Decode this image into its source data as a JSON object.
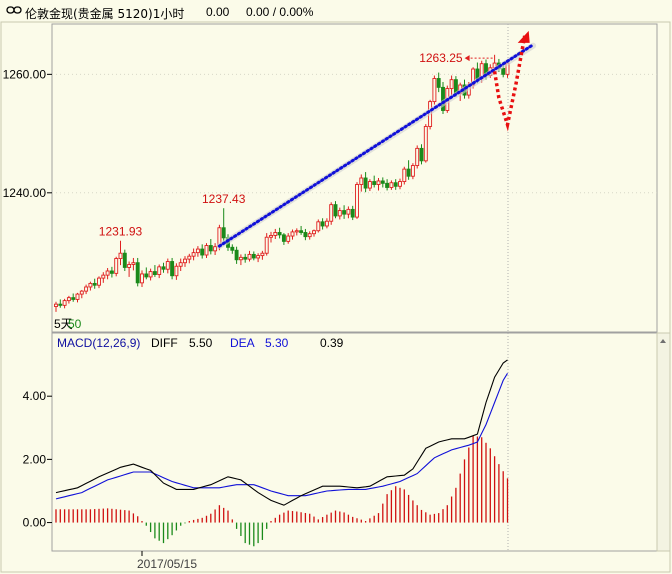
{
  "header": {
    "icon": "link-icon",
    "title": "伦敦金现(贵金属 5120)1小时",
    "change": "0.00",
    "change_pct": "0.00 / 0.00%"
  },
  "chart_data": [
    {
      "type": "candlestick",
      "title": "",
      "ylim": [
        1216.5,
        1268.5
      ],
      "yticks": [
        1240,
        1260
      ],
      "ytick_labels": [
        "1240.00",
        "1260.00"
      ],
      "ma_label": "5天",
      "ma_value_partial": "50",
      "annotations": [
        {
          "text": "1231.93",
          "index": 15,
          "value": 1231.93
        },
        {
          "text": "1237.43",
          "index": 39,
          "value": 1237.43
        },
        {
          "text": "1263.25",
          "index": 102,
          "value": 1263.25
        }
      ],
      "candles": [
        [
          1220.8,
          1221.6,
          1219.9,
          1221.2
        ],
        [
          1221.2,
          1222.0,
          1220.6,
          1221.0
        ],
        [
          1221.0,
          1222.1,
          1220.5,
          1221.8
        ],
        [
          1221.8,
          1222.6,
          1221.3,
          1222.3
        ],
        [
          1222.3,
          1223.0,
          1221.6,
          1222.0
        ],
        [
          1222.0,
          1223.1,
          1221.5,
          1222.9
        ],
        [
          1222.9,
          1223.6,
          1222.2,
          1223.4
        ],
        [
          1223.4,
          1224.5,
          1222.9,
          1224.1
        ],
        [
          1224.1,
          1225.0,
          1223.5,
          1224.7
        ],
        [
          1224.7,
          1225.5,
          1223.8,
          1224.4
        ],
        [
          1224.4,
          1225.9,
          1223.9,
          1225.6
        ],
        [
          1225.6,
          1226.6,
          1224.8,
          1226.1
        ],
        [
          1226.1,
          1227.3,
          1225.4,
          1226.8
        ],
        [
          1226.8,
          1227.5,
          1225.7,
          1226.4
        ],
        [
          1226.4,
          1229.2,
          1225.9,
          1228.9
        ],
        [
          1228.9,
          1231.9,
          1227.8,
          1229.8
        ],
        [
          1229.8,
          1230.4,
          1226.8,
          1227.4
        ],
        [
          1227.4,
          1228.4,
          1225.8,
          1227.9
        ],
        [
          1227.9,
          1229.0,
          1226.9,
          1228.2
        ],
        [
          1228.2,
          1229.0,
          1224.2,
          1224.8
        ],
        [
          1224.8,
          1226.9,
          1224.1,
          1226.3
        ],
        [
          1226.3,
          1227.4,
          1225.4,
          1225.8
        ],
        [
          1225.8,
          1227.2,
          1225.2,
          1226.7
        ],
        [
          1226.7,
          1227.8,
          1225.8,
          1226.2
        ],
        [
          1226.2,
          1227.9,
          1225.6,
          1227.5
        ],
        [
          1227.5,
          1228.2,
          1226.5,
          1227.1
        ],
        [
          1227.1,
          1228.9,
          1226.4,
          1228.4
        ],
        [
          1228.4,
          1229.0,
          1225.4,
          1226.0
        ],
        [
          1226.0,
          1228.1,
          1225.3,
          1227.6
        ],
        [
          1227.6,
          1228.9,
          1226.8,
          1228.2
        ],
        [
          1228.2,
          1229.3,
          1227.5,
          1228.8
        ],
        [
          1228.8,
          1229.7,
          1228.1,
          1229.3
        ],
        [
          1229.3,
          1230.6,
          1228.6,
          1229.9
        ],
        [
          1229.9,
          1231.0,
          1229.2,
          1230.5
        ],
        [
          1230.5,
          1231.3,
          1228.9,
          1229.5
        ],
        [
          1229.5,
          1231.5,
          1229.0,
          1231.1
        ],
        [
          1231.1,
          1232.2,
          1229.6,
          1230.2
        ],
        [
          1230.2,
          1231.5,
          1229.5,
          1230.9
        ],
        [
          1230.9,
          1234.6,
          1230.3,
          1234.1
        ],
        [
          1234.1,
          1237.4,
          1231.8,
          1232.4
        ],
        [
          1232.4,
          1233.0,
          1230.2,
          1230.8
        ],
        [
          1230.8,
          1231.3,
          1229.7,
          1230.3
        ],
        [
          1230.3,
          1230.9,
          1228.0,
          1228.7
        ],
        [
          1228.7,
          1229.6,
          1227.8,
          1229.1
        ],
        [
          1229.1,
          1229.7,
          1228.2,
          1228.8
        ],
        [
          1228.8,
          1230.2,
          1228.4,
          1229.6
        ],
        [
          1229.6,
          1230.1,
          1228.6,
          1229.0
        ],
        [
          1229.0,
          1229.8,
          1228.3,
          1229.4
        ],
        [
          1229.4,
          1230.2,
          1228.7,
          1229.8
        ],
        [
          1229.8,
          1233.2,
          1229.4,
          1232.5
        ],
        [
          1232.5,
          1233.4,
          1231.6,
          1232.8
        ],
        [
          1232.8,
          1233.9,
          1232.2,
          1233.3
        ],
        [
          1233.3,
          1234.1,
          1232.3,
          1232.9
        ],
        [
          1232.9,
          1233.2,
          1231.2,
          1231.8
        ],
        [
          1231.8,
          1233.2,
          1231.4,
          1232.7
        ],
        [
          1232.7,
          1233.8,
          1232.1,
          1233.4
        ],
        [
          1233.4,
          1234.0,
          1232.8,
          1233.6
        ],
        [
          1233.6,
          1234.4,
          1232.9,
          1233.3
        ],
        [
          1233.3,
          1233.9,
          1232.0,
          1232.6
        ],
        [
          1232.6,
          1233.5,
          1232.1,
          1233.1
        ],
        [
          1233.1,
          1233.8,
          1232.6,
          1233.6
        ],
        [
          1233.6,
          1235.5,
          1233.3,
          1235.1
        ],
        [
          1235.1,
          1235.7,
          1233.8,
          1234.4
        ],
        [
          1234.4,
          1235.7,
          1234.0,
          1235.2
        ],
        [
          1235.2,
          1238.4,
          1234.6,
          1238.0
        ],
        [
          1238.0,
          1238.6,
          1235.7,
          1236.1
        ],
        [
          1236.1,
          1237.5,
          1235.5,
          1237.0
        ],
        [
          1237.0,
          1237.9,
          1235.6,
          1236.4
        ],
        [
          1236.4,
          1237.7,
          1235.7,
          1237.2
        ],
        [
          1237.2,
          1237.8,
          1235.4,
          1235.9
        ],
        [
          1235.9,
          1241.8,
          1235.6,
          1241.4
        ],
        [
          1241.4,
          1243.1,
          1240.2,
          1242.5
        ],
        [
          1242.5,
          1243.5,
          1240.1,
          1240.8
        ],
        [
          1240.8,
          1242.3,
          1240.3,
          1241.9
        ],
        [
          1241.9,
          1242.9,
          1240.9,
          1241.4
        ],
        [
          1241.4,
          1242.5,
          1240.4,
          1242.0
        ],
        [
          1242.0,
          1242.6,
          1240.9,
          1241.6
        ],
        [
          1241.6,
          1242.3,
          1240.4,
          1240.9
        ],
        [
          1240.9,
          1242.1,
          1240.5,
          1241.7
        ],
        [
          1241.7,
          1242.3,
          1240.5,
          1241.1
        ],
        [
          1241.1,
          1242.4,
          1240.6,
          1241.9
        ],
        [
          1241.9,
          1244.4,
          1241.4,
          1244.0
        ],
        [
          1244.0,
          1245.5,
          1242.2,
          1242.8
        ],
        [
          1242.8,
          1245.0,
          1242.3,
          1244.6
        ],
        [
          1244.6,
          1248.0,
          1244.1,
          1247.5
        ],
        [
          1247.5,
          1248.2,
          1244.8,
          1245.4
        ],
        [
          1245.4,
          1251.6,
          1245.1,
          1251.2
        ],
        [
          1251.2,
          1255.7,
          1250.7,
          1255.4
        ],
        [
          1255.4,
          1259.8,
          1254.9,
          1259.3
        ],
        [
          1259.3,
          1260.3,
          1257.0,
          1257.8
        ],
        [
          1257.8,
          1258.7,
          1253.3,
          1253.9
        ],
        [
          1253.9,
          1258.1,
          1253.5,
          1257.6
        ],
        [
          1257.6,
          1259.8,
          1256.5,
          1259.1
        ],
        [
          1259.1,
          1259.7,
          1256.2,
          1256.8
        ],
        [
          1256.8,
          1258.6,
          1255.5,
          1258.2
        ],
        [
          1258.2,
          1259.1,
          1255.9,
          1256.5
        ],
        [
          1256.5,
          1258.7,
          1255.9,
          1258.2
        ],
        [
          1258.2,
          1261.2,
          1257.6,
          1260.9
        ],
        [
          1260.9,
          1262.0,
          1258.5,
          1259.3
        ],
        [
          1259.3,
          1262.3,
          1258.6,
          1261.8
        ],
        [
          1261.8,
          1262.5,
          1259.1,
          1259.8
        ],
        [
          1259.8,
          1261.7,
          1259.4,
          1261.1
        ],
        [
          1261.1,
          1263.3,
          1260.3,
          1261.9
        ],
        [
          1261.9,
          1262.6,
          1260.4,
          1261.0
        ],
        [
          1261.0,
          1261.5,
          1259.5,
          1260.0
        ],
        [
          1260.0,
          1262.5,
          1259.4,
          1261.9
        ]
      ],
      "overlays": {
        "trend_line": {
          "from": [
            38,
            1231.0
          ],
          "to": [
            97,
            1265.0
          ],
          "color": "#1010d8",
          "style": "dotted"
        },
        "projection": {
          "points": [
            [
              102,
              1260.5
            ],
            [
              103,
              1256.0
            ],
            [
              105,
              1251.5
            ],
            [
              107,
              1258.5
            ],
            [
              109,
              1266.5
            ]
          ],
          "color": "#e81010",
          "style": "dotted",
          "arrow": true
        },
        "high_marker": {
          "index": 102,
          "value": 1263.25
        }
      }
    },
    {
      "type": "line+bar",
      "title": "MACD(12,26,9)",
      "legend": [
        {
          "name": "DIFF",
          "value": "5.50",
          "color": "#000000"
        },
        {
          "name": "DEA",
          "value": "5.30",
          "color": "#1010d8"
        },
        {
          "name": "",
          "value": "0.39",
          "color": "#000000"
        }
      ],
      "ylim": [
        -0.9,
        6.0
      ],
      "yticks": [
        0,
        2,
        4
      ],
      "ytick_labels": [
        "0.00",
        "2.00",
        "4.00"
      ],
      "x_label": "2017/05/15",
      "x_label_index": 20,
      "diff_knots": [
        [
          0,
          0.95
        ],
        [
          5,
          1.1
        ],
        [
          10,
          1.45
        ],
        [
          15,
          1.75
        ],
        [
          18,
          1.85
        ],
        [
          22,
          1.65
        ],
        [
          25,
          1.25
        ],
        [
          28,
          1.05
        ],
        [
          32,
          1.05
        ],
        [
          36,
          1.2
        ],
        [
          40,
          1.45
        ],
        [
          43,
          1.35
        ],
        [
          47,
          0.95
        ],
        [
          50,
          0.7
        ],
        [
          53,
          0.55
        ],
        [
          57,
          0.85
        ],
        [
          62,
          1.15
        ],
        [
          66,
          1.15
        ],
        [
          70,
          1.1
        ],
        [
          73,
          1.15
        ],
        [
          77,
          1.45
        ],
        [
          81,
          1.5
        ],
        [
          83,
          1.7
        ],
        [
          86,
          2.35
        ],
        [
          89,
          2.55
        ],
        [
          92,
          2.65
        ],
        [
          95,
          2.65
        ],
        [
          98,
          2.8
        ],
        [
          100,
          3.8
        ],
        [
          102,
          4.6
        ],
        [
          104,
          5.05
        ],
        [
          106,
          5.25
        ],
        [
          108,
          5.3
        ],
        [
          110,
          5.5
        ],
        [
          112,
          5.5
        ]
      ],
      "dea_knots": [
        [
          0,
          0.75
        ],
        [
          6,
          0.95
        ],
        [
          12,
          1.35
        ],
        [
          18,
          1.6
        ],
        [
          22,
          1.6
        ],
        [
          27,
          1.3
        ],
        [
          32,
          1.1
        ],
        [
          38,
          1.1
        ],
        [
          42,
          1.2
        ],
        [
          46,
          1.2
        ],
        [
          50,
          1.0
        ],
        [
          54,
          0.85
        ],
        [
          58,
          0.85
        ],
        [
          63,
          1.0
        ],
        [
          68,
          1.05
        ],
        [
          72,
          1.05
        ],
        [
          76,
          1.15
        ],
        [
          80,
          1.3
        ],
        [
          84,
          1.55
        ],
        [
          88,
          2.05
        ],
        [
          92,
          2.3
        ],
        [
          96,
          2.45
        ],
        [
          98,
          2.55
        ],
        [
          100,
          3.1
        ],
        [
          102,
          3.8
        ],
        [
          104,
          4.5
        ],
        [
          106,
          4.95
        ],
        [
          108,
          5.2
        ],
        [
          110,
          5.3
        ],
        [
          112,
          5.3
        ]
      ],
      "hist_knots": [
        [
          0,
          0.42
        ],
        [
          8,
          0.42
        ],
        [
          12,
          0.45
        ],
        [
          17,
          0.38
        ],
        [
          19,
          0.2
        ],
        [
          21,
          -0.1
        ],
        [
          23,
          -0.5
        ],
        [
          25,
          -0.65
        ],
        [
          27,
          -0.4
        ],
        [
          29,
          -0.1
        ],
        [
          31,
          0.05
        ],
        [
          34,
          0.15
        ],
        [
          36,
          0.28
        ],
        [
          38,
          0.55
        ],
        [
          40,
          0.38
        ],
        [
          41,
          0.1
        ],
        [
          42,
          -0.2
        ],
        [
          44,
          -0.65
        ],
        [
          46,
          -0.75
        ],
        [
          48,
          -0.55
        ],
        [
          49,
          -0.2
        ],
        [
          50,
          0.05
        ],
        [
          52,
          0.25
        ],
        [
          54,
          0.38
        ],
        [
          56,
          0.35
        ],
        [
          59,
          0.28
        ],
        [
          61,
          0.1
        ],
        [
          63,
          0.25
        ],
        [
          65,
          0.38
        ],
        [
          67,
          0.32
        ],
        [
          69,
          0.18
        ],
        [
          72,
          0.05
        ],
        [
          75,
          0.3
        ],
        [
          77,
          0.9
        ],
        [
          79,
          1.15
        ],
        [
          81,
          1.05
        ],
        [
          83,
          0.7
        ],
        [
          85,
          0.4
        ],
        [
          87,
          0.25
        ],
        [
          89,
          0.3
        ],
        [
          91,
          0.55
        ],
        [
          93,
          1.1
        ],
        [
          95,
          2.0
        ],
        [
          97,
          2.75
        ],
        [
          99,
          2.7
        ],
        [
          101,
          2.35
        ],
        [
          103,
          1.85
        ],
        [
          105,
          1.4
        ],
        [
          106,
          0.9
        ],
        [
          108,
          0.55
        ],
        [
          110,
          0.39
        ]
      ]
    }
  ]
}
